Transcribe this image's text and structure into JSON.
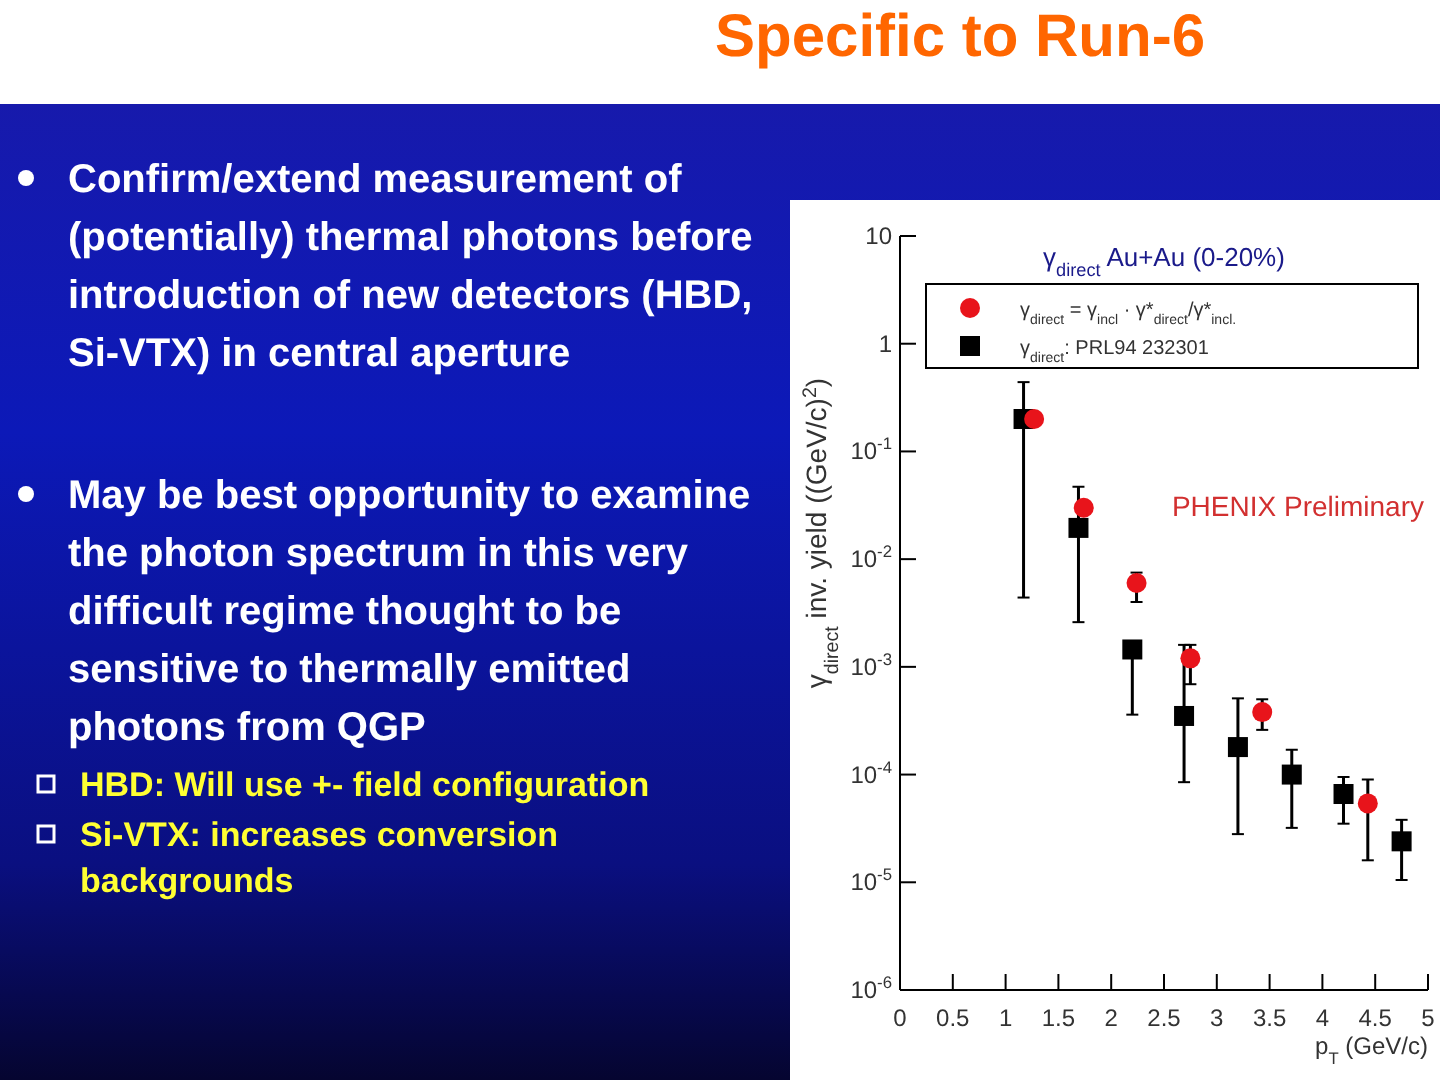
{
  "chart_data": {
    "type": "scatter",
    "title": "Specific to Run-6",
    "xlabel": "p$_{T}$ (GeV/c)",
    "ylabel": "γ$_{direct}$ inv. yield ((GeV/c)$^{2}$)",
    "legend_title": "γ$_{direct}$ Au+Au (0-20%)",
    "legend": "top",
    "log": "y",
    "xlim": [
      0,
      5
    ],
    "xticks": [
      0,
      0.5,
      1,
      1.5,
      2,
      2.5,
      3,
      3.5,
      4,
      4.5,
      5
    ],
    "ylim": [
      1e-06,
      10
    ],
    "yticks": [
      {
        "value": 1e-06,
        "label": "10$^{-6}$"
      },
      {
        "value": 1e-05,
        "label": "10$^{-5}$"
      },
      {
        "value": 0.0001,
        "label": "10$^{-4}$"
      },
      {
        "value": 0.001,
        "label": "10$^{-3}$"
      },
      {
        "value": 0.01,
        "label": "10$^{-2}$"
      },
      {
        "value": 0.1,
        "label": "10$^{-1}$"
      },
      1,
      10
    ],
    "series": [
      {
        "name": "γ$_{direct}$ = γ$_{incl}$ · γ*$_{direct}$/γ*$_{incl.}$",
        "color": "#e8141b",
        "marker": "circle",
        "x": [
          1.27,
          1.74,
          2.24,
          2.75,
          3.43,
          4.43
        ],
        "values": [
          0.2,
          0.03,
          0.006,
          0.0012,
          0.00038,
          5.4e-05
        ],
        "errors": [
          null,
          null,
          [
            0.004,
            0.0075
          ],
          [
            0.00069,
            0.0016
          ],
          [
            0.00026,
            0.0005
          ],
          [
            1.6e-05,
            9e-05
          ]
        ]
      },
      {
        "name": "γ$_{direct}$: PRL94 232301",
        "color": "#000000",
        "marker": "square",
        "x": [
          1.17,
          1.69,
          2.2,
          2.69,
          3.2,
          3.71,
          4.2,
          4.75
        ],
        "values": [
          0.2,
          0.0195,
          0.00145,
          0.00035,
          0.00018,
          0.0001,
          6.6e-05,
          2.4e-05
        ],
        "errors": [
          [
            0.0044,
            0.44
          ],
          [
            0.0026,
            0.047
          ],
          [
            0.00036,
            0.00145
          ],
          [
            8.5e-05,
            0.0016
          ],
          [
            2.8e-05,
            0.00051
          ],
          [
            3.2e-05,
            0.00017
          ],
          [
            3.5e-05,
            9.5e-05
          ],
          [
            1.05e-05,
            3.8e-05
          ]
        ]
      }
    ],
    "annotations": [
      "PHENIX Preliminary",
      "Confirm/extend measurement of  (potentially) thermal photons before introduction of new detectors (HBD, Si-VTX) in central aperture",
      "May be best opportunity to examine the photon spectrum in this very difficult regime thought to be sensitive to thermally emitted photons from QGP",
      "HBD: Will use +- field configuration",
      "Si-VTX: increases conversion backgrounds"
    ]
  }
}
